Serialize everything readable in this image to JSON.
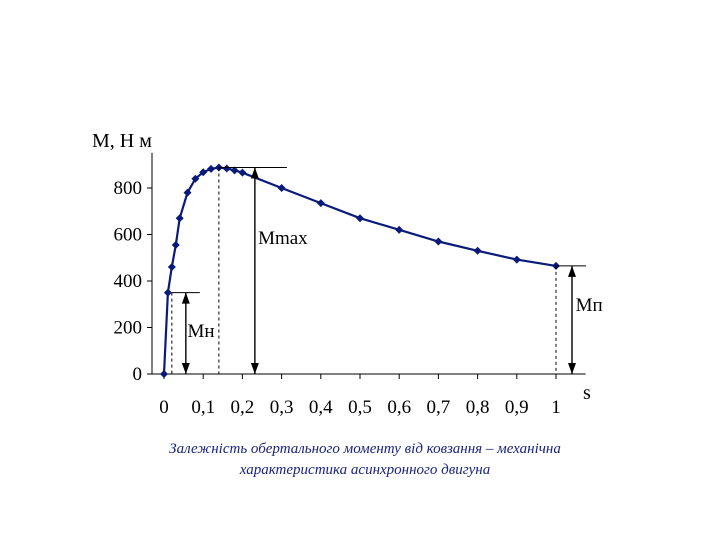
{
  "chart_data": {
    "type": "line",
    "ylabel": "М, Н м",
    "xlabel": "s",
    "xlim": [
      0,
      1.05
    ],
    "ylim": [
      0,
      900
    ],
    "x_ticks": [
      0,
      0.1,
      0.2,
      0.3,
      0.4,
      0.5,
      0.6,
      0.7,
      0.8,
      0.9,
      1
    ],
    "x_tick_labels": [
      "0",
      "0,1",
      "0,2",
      "0,3",
      "0,4",
      "0,5",
      "0,6",
      "0,7",
      "0,8",
      "0,9",
      "1"
    ],
    "y_ticks": [
      0,
      200,
      400,
      600,
      800
    ],
    "y_tick_labels": [
      "0",
      "200",
      "400",
      "600",
      "800"
    ],
    "grid": false,
    "legend": "none",
    "series": [
      {
        "color": "#0a1a7a",
        "marker": "diamond",
        "points": [
          [
            0,
            0
          ],
          [
            0.01,
            350
          ],
          [
            0.02,
            460
          ],
          [
            0.03,
            555
          ],
          [
            0.04,
            670
          ],
          [
            0.06,
            780
          ],
          [
            0.08,
            840
          ],
          [
            0.1,
            868
          ],
          [
            0.12,
            882
          ],
          [
            0.14,
            888
          ],
          [
            0.16,
            884
          ],
          [
            0.18,
            876
          ],
          [
            0.2,
            866
          ],
          [
            0.3,
            800
          ],
          [
            0.4,
            735
          ],
          [
            0.5,
            670
          ],
          [
            0.6,
            620
          ],
          [
            0.7,
            570
          ],
          [
            0.8,
            530
          ],
          [
            0.9,
            492
          ],
          [
            1.0,
            465
          ]
        ]
      }
    ],
    "annotations": [
      {
        "label": "Мн",
        "x": 0.02,
        "y": 350,
        "label_x": 0.06,
        "label_y": 160
      },
      {
        "label": "Мmax",
        "x": 0.14,
        "y": 888,
        "label_x": 0.24,
        "label_y": 560
      },
      {
        "label": "Мп",
        "x": 1.0,
        "y": 465,
        "label_x": 1.05,
        "label_y": 270
      }
    ]
  },
  "caption": {
    "line1": "Залежність обертального моменту від ковзання – механічна",
    "line2": "характеристика асинхронного двигуна"
  },
  "colors": {
    "series": "#0a1a7a",
    "caption": "#1a237e"
  }
}
